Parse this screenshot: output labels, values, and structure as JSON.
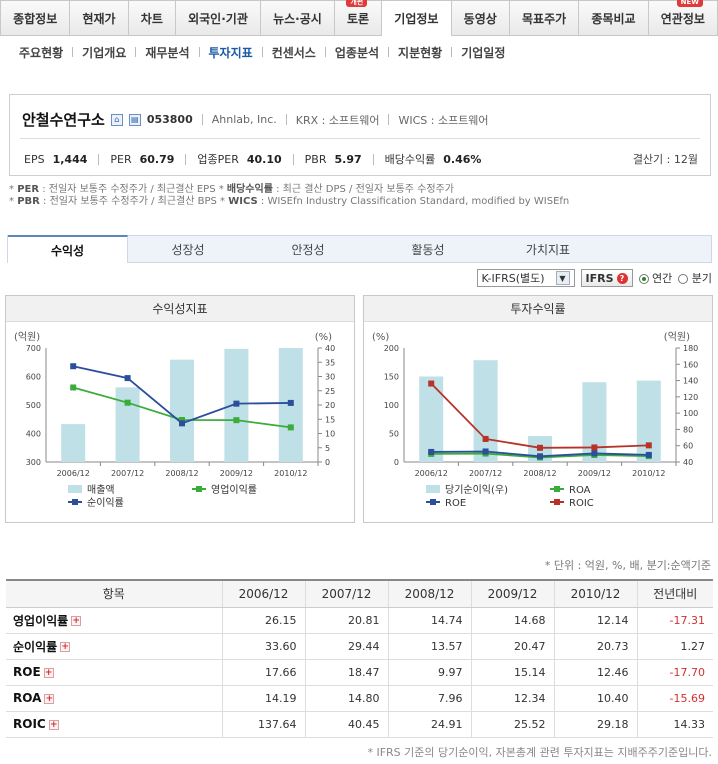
{
  "top_tabs": [
    {
      "label": "종합정보"
    },
    {
      "label": "현재가"
    },
    {
      "label": "차트"
    },
    {
      "label": "외국인·기관"
    },
    {
      "label": "뉴스·공시"
    },
    {
      "label": "토론",
      "badge": "개편"
    },
    {
      "label": "기업정보",
      "active": true
    },
    {
      "label": "동영상"
    },
    {
      "label": "목표주가"
    },
    {
      "label": "종목비교"
    },
    {
      "label": "연관정보",
      "badge": "NEW"
    }
  ],
  "sub_tabs": [
    "주요현황",
    "기업개요",
    "재무분석",
    "투자지표",
    "컨센서스",
    "업종분석",
    "지분현황",
    "기업일정"
  ],
  "sub_tab_active": "투자지표",
  "company": {
    "name": "안철수연구소",
    "code": "053800",
    "english": "Ahnlab, Inc.",
    "krx": "KRX : 소프트웨어",
    "wics": "WICS : 소프트웨어",
    "eps_label": "EPS",
    "eps": "1,444",
    "per_label": "PER",
    "per": "60.79",
    "sector_per_label": "업종PER",
    "sector_per": "40.10",
    "pbr_label": "PBR",
    "pbr": "5.97",
    "div_label": "배당수익률",
    "div": "0.46%",
    "fiscal": "결산기 : 12월"
  },
  "notes": {
    "per_key": "PER",
    "per_text": " : 전일자 보통주 수정주가 / 최근결산 EPS * ",
    "div_key": "배당수익률",
    "div_text": " : 최근 결산 DPS / 전일자 보통주 수정주가",
    "pbr_key": "PBR",
    "pbr_text": " : 전일자 보통주 수정주가 / 최근결산 BPS * ",
    "wics_key": "WICS",
    "wics_text": " : WISEfn Industry Classification Standard, modified by WISEfn"
  },
  "analysis_tabs": [
    "수익성",
    "성장성",
    "안정성",
    "활동성",
    "가치지표"
  ],
  "analysis_active": "수익성",
  "controls": {
    "select": "K-IFRS(별도)",
    "ifrs": "IFRS",
    "annual": "연간",
    "quarterly": "분기"
  },
  "chart_data": [
    {
      "type": "bar",
      "title": "수익성지표",
      "left_unit": "(억원)",
      "right_unit": "(%)",
      "categories": [
        "2006/12",
        "2007/12",
        "2008/12",
        "2009/12",
        "2010/12"
      ],
      "ylim_left": [
        300,
        700
      ],
      "yticks_left": [
        300,
        400,
        500,
        600,
        700
      ],
      "ylim_right": [
        0,
        40
      ],
      "yticks_right": [
        0,
        5,
        10,
        15,
        20,
        25,
        30,
        35,
        40
      ],
      "bars": {
        "name": "매출액",
        "color": "#bfe0e6",
        "values": [
          433,
          562,
          659,
          697,
          700
        ]
      },
      "lines": [
        {
          "name": "영업이익률",
          "color": "#3aac3a",
          "values": [
            26.15,
            20.81,
            14.74,
            14.68,
            12.14
          ]
        },
        {
          "name": "순이익률",
          "color": "#2b4f9a",
          "values": [
            33.6,
            29.44,
            13.57,
            20.47,
            20.73
          ]
        }
      ]
    },
    {
      "type": "bar",
      "title": "투자수익률",
      "left_unit": "(%)",
      "right_unit": "(억원)",
      "categories": [
        "2006/12",
        "2007/12",
        "2008/12",
        "2009/12",
        "2010/12"
      ],
      "ylim_left": [
        0,
        200
      ],
      "yticks_left": [
        0,
        50,
        100,
        150,
        200
      ],
      "ylim_right": [
        40,
        180
      ],
      "yticks_right": [
        40,
        60,
        80,
        100,
        120,
        140,
        160,
        180
      ],
      "bars": {
        "name": "당기순이익(우)",
        "color": "#bfe0e6",
        "values": [
          145,
          165,
          72,
          138,
          140
        ]
      },
      "lines": [
        {
          "name": "ROA",
          "color": "#3aac3a",
          "values": [
            14.19,
            14.8,
            7.96,
            12.34,
            10.4
          ]
        },
        {
          "name": "ROE",
          "color": "#2b4f9a",
          "values": [
            17.66,
            18.47,
            9.97,
            15.14,
            12.46
          ]
        },
        {
          "name": "ROIC",
          "color": "#b83228",
          "values": [
            137.64,
            40.45,
            24.91,
            25.52,
            29.18
          ]
        }
      ]
    }
  ],
  "unit_text": "* 단위 : 억원, %, 배, 분기:순액기준",
  "table": {
    "headers": [
      "항목",
      "2006/12",
      "2007/12",
      "2008/12",
      "2009/12",
      "2010/12",
      "전년대비"
    ],
    "rows": [
      {
        "name": "영업이익률",
        "values": [
          "26.15",
          "20.81",
          "14.74",
          "14.68",
          "12.14"
        ],
        "change": "-17.31",
        "neg": true
      },
      {
        "name": "순이익률",
        "values": [
          "33.60",
          "29.44",
          "13.57",
          "20.47",
          "20.73"
        ],
        "change": "1.27",
        "neg": false
      },
      {
        "name": "ROE",
        "values": [
          "17.66",
          "18.47",
          "9.97",
          "15.14",
          "12.46"
        ],
        "change": "-17.70",
        "neg": true
      },
      {
        "name": "ROA",
        "values": [
          "14.19",
          "14.80",
          "7.96",
          "12.34",
          "10.40"
        ],
        "change": "-15.69",
        "neg": true
      },
      {
        "name": "ROIC",
        "values": [
          "137.64",
          "40.45",
          "24.91",
          "25.52",
          "29.18"
        ],
        "change": "14.33",
        "neg": false
      }
    ]
  },
  "footnote": "* IFRS 기준의 당기순이익, 자본총계 관련 투자지표는 지배주주기준입니다."
}
